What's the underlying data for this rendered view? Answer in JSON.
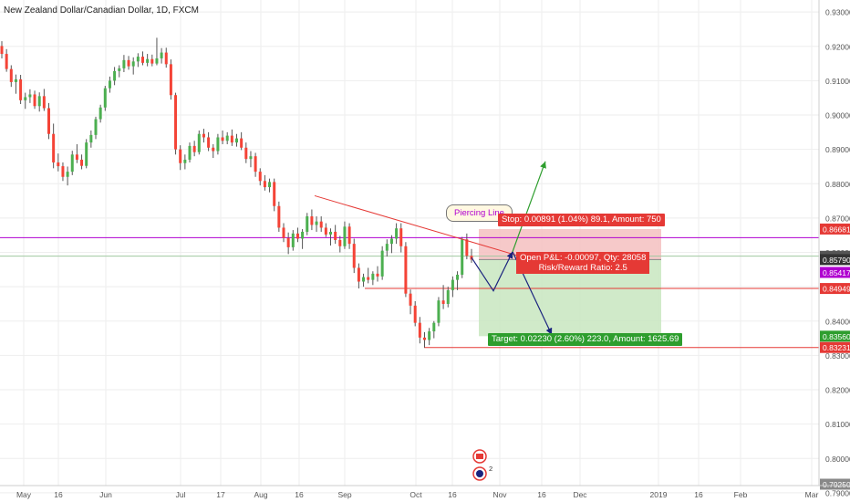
{
  "header": {
    "title": "New Zealand Dollar/Canadian Dollar, 1D, FXCM"
  },
  "colors": {
    "up": "#4caf50",
    "down": "#f44336",
    "wick": "#555555",
    "stop_zone": "#f4c0c0",
    "target_zone": "#c8e6c0",
    "purple_line": "#b000d0",
    "red_line": "#e53935",
    "grid": "#eeeeee"
  },
  "chart_data": {
    "type": "candlestick",
    "symbol": "New Zealand Dollar/Canadian Dollar",
    "interval": "1D",
    "exchange": "FXCM",
    "y_range": [
      0.7921,
      0.9335
    ],
    "y_ticks": [
      "0.93000",
      "0.92000",
      "0.91000",
      "0.90000",
      "0.89000",
      "0.88000",
      "0.87000",
      "0.86000",
      "0.85000",
      "0.84000",
      "0.83000",
      "0.82000",
      "0.81000",
      "0.80000",
      "0.79000"
    ],
    "x_ticks": [
      "May",
      "16",
      "Jun",
      "Jul",
      "17",
      "Aug",
      "16",
      "Sep",
      "Oct",
      "16",
      "Nov",
      "16",
      "Dec",
      "2019",
      "16",
      "Feb",
      "Mar"
    ],
    "price_labels": [
      {
        "value": "0.86681",
        "color": "#e53935"
      },
      {
        "value": "0.85417",
        "color": "#b000d0"
      },
      {
        "value": "0.85887",
        "color": "#555555"
      },
      {
        "value": "0.85790",
        "color": "#333333"
      },
      {
        "value": "0.84949",
        "color": "#e53935"
      },
      {
        "value": "0.83560",
        "color": "#2e9e2e"
      },
      {
        "value": "0.83231",
        "color": "#e53935"
      },
      {
        "value": "0.79250",
        "color": "#888888"
      }
    ],
    "horizontal_levels": {
      "purple": 0.8643,
      "gray": 0.8589,
      "support": 0.8495,
      "low": 0.8323
    },
    "trade": {
      "entry": 0.8579,
      "stop": 0.8668,
      "target": 0.8356,
      "stop_label": "Stop: 0.00891 (1.04%) 89.1, Amount: 750",
      "target_label": "Target: 0.02230 (2.60%) 223.0, Amount: 1625.69",
      "pnl_label": "Open P&L: -0.00097, Qty: 28058",
      "rr_label": "Risk/Reward Ratio: 2.5"
    },
    "pattern_label": "Piercing Line",
    "event_count": "2",
    "candles": [
      [
        0.9201,
        0.9215,
        0.9165,
        0.9178
      ],
      [
        0.9178,
        0.9192,
        0.9126,
        0.9134
      ],
      [
        0.9134,
        0.9145,
        0.9082,
        0.9096
      ],
      [
        0.9096,
        0.9118,
        0.9062,
        0.9104
      ],
      [
        0.9104,
        0.9117,
        0.9032,
        0.9043
      ],
      [
        0.9043,
        0.9065,
        0.9018,
        0.9052
      ],
      [
        0.9052,
        0.9075,
        0.9035,
        0.906
      ],
      [
        0.906,
        0.9071,
        0.9018,
        0.9026
      ],
      [
        0.9026,
        0.9066,
        0.901,
        0.9055
      ],
      [
        0.9055,
        0.9076,
        0.9012,
        0.902
      ],
      [
        0.902,
        0.9035,
        0.893,
        0.8945
      ],
      [
        0.8945,
        0.8975,
        0.8845,
        0.8862
      ],
      [
        0.8862,
        0.8888,
        0.8836,
        0.8851
      ],
      [
        0.8851,
        0.8862,
        0.8808,
        0.882
      ],
      [
        0.882,
        0.885,
        0.8795,
        0.8835
      ],
      [
        0.8835,
        0.8896,
        0.8825,
        0.8885
      ],
      [
        0.8885,
        0.8915,
        0.886,
        0.887
      ],
      [
        0.887,
        0.8885,
        0.8842,
        0.8852
      ],
      [
        0.8852,
        0.893,
        0.8845,
        0.892
      ],
      [
        0.892,
        0.8955,
        0.8905,
        0.8942
      ],
      [
        0.8942,
        0.8995,
        0.893,
        0.8988
      ],
      [
        0.8988,
        0.903,
        0.8978,
        0.9022
      ],
      [
        0.9022,
        0.9085,
        0.9012,
        0.9078
      ],
      [
        0.9078,
        0.9112,
        0.9065,
        0.91
      ],
      [
        0.91,
        0.914,
        0.9087,
        0.9128
      ],
      [
        0.9128,
        0.9145,
        0.911,
        0.9136
      ],
      [
        0.9136,
        0.9175,
        0.9125,
        0.916
      ],
      [
        0.916,
        0.9172,
        0.9132,
        0.9142
      ],
      [
        0.9142,
        0.9168,
        0.9118,
        0.9156
      ],
      [
        0.9156,
        0.918,
        0.914,
        0.917
      ],
      [
        0.917,
        0.9185,
        0.9145,
        0.9152
      ],
      [
        0.9152,
        0.9178,
        0.9142,
        0.9163
      ],
      [
        0.9163,
        0.9176,
        0.9142,
        0.915
      ],
      [
        0.915,
        0.9225,
        0.9145,
        0.9165
      ],
      [
        0.9165,
        0.9195,
        0.915,
        0.9182
      ],
      [
        0.9182,
        0.9196,
        0.9138,
        0.9148
      ],
      [
        0.9148,
        0.9162,
        0.9045,
        0.9058
      ],
      [
        0.9058,
        0.9065,
        0.8885,
        0.89
      ],
      [
        0.89,
        0.8912,
        0.884,
        0.886
      ],
      [
        0.886,
        0.8885,
        0.8842,
        0.887
      ],
      [
        0.887,
        0.892,
        0.8862,
        0.891
      ],
      [
        0.891,
        0.8925,
        0.888,
        0.8892
      ],
      [
        0.8892,
        0.8955,
        0.8885,
        0.8945
      ],
      [
        0.8945,
        0.896,
        0.892,
        0.8935
      ],
      [
        0.8935,
        0.895,
        0.8895,
        0.8905
      ],
      [
        0.8905,
        0.8915,
        0.8875,
        0.8895
      ],
      [
        0.8895,
        0.8945,
        0.8885,
        0.8935
      ],
      [
        0.8935,
        0.8955,
        0.8915,
        0.8925
      ],
      [
        0.8925,
        0.895,
        0.8915,
        0.894
      ],
      [
        0.894,
        0.8958,
        0.891,
        0.892
      ],
      [
        0.892,
        0.8945,
        0.8908,
        0.8932
      ],
      [
        0.8932,
        0.895,
        0.8898,
        0.8905
      ],
      [
        0.8905,
        0.892,
        0.886,
        0.8872
      ],
      [
        0.8872,
        0.8895,
        0.8848,
        0.888
      ],
      [
        0.888,
        0.889,
        0.882,
        0.8835
      ],
      [
        0.8835,
        0.8845,
        0.8795,
        0.8808
      ],
      [
        0.8808,
        0.8825,
        0.878,
        0.879
      ],
      [
        0.879,
        0.8815,
        0.8775,
        0.8805
      ],
      [
        0.8805,
        0.8815,
        0.872,
        0.8735
      ],
      [
        0.8735,
        0.8748,
        0.866,
        0.8672
      ],
      [
        0.8672,
        0.8685,
        0.863,
        0.8642
      ],
      [
        0.8642,
        0.8658,
        0.8595,
        0.8615
      ],
      [
        0.8615,
        0.8665,
        0.8605,
        0.8655
      ],
      [
        0.8655,
        0.8672,
        0.863,
        0.864
      ],
      [
        0.864,
        0.8668,
        0.861,
        0.866
      ],
      [
        0.866,
        0.8715,
        0.865,
        0.8705
      ],
      [
        0.8705,
        0.8725,
        0.8665,
        0.868
      ],
      [
        0.868,
        0.8705,
        0.866,
        0.869
      ],
      [
        0.869,
        0.8705,
        0.866,
        0.8672
      ],
      [
        0.8672,
        0.8685,
        0.8645,
        0.8652
      ],
      [
        0.8652,
        0.867,
        0.862,
        0.866
      ],
      [
        0.866,
        0.868,
        0.8625,
        0.8636
      ],
      [
        0.8636,
        0.8648,
        0.86,
        0.8618
      ],
      [
        0.8618,
        0.869,
        0.861,
        0.8675
      ],
      [
        0.8675,
        0.8685,
        0.861,
        0.8625
      ],
      [
        0.8625,
        0.864,
        0.854,
        0.8555
      ],
      [
        0.8555,
        0.8568,
        0.8495,
        0.8515
      ],
      [
        0.8515,
        0.8538,
        0.85,
        0.8528
      ],
      [
        0.8528,
        0.8555,
        0.851,
        0.852
      ],
      [
        0.852,
        0.8545,
        0.8505,
        0.8538
      ],
      [
        0.8538,
        0.856,
        0.8515,
        0.853
      ],
      [
        0.853,
        0.8618,
        0.852,
        0.8605
      ],
      [
        0.8605,
        0.8638,
        0.8588,
        0.8625
      ],
      [
        0.8625,
        0.865,
        0.8598,
        0.864
      ],
      [
        0.864,
        0.8685,
        0.8625,
        0.867
      ],
      [
        0.867,
        0.8685,
        0.86,
        0.8618
      ],
      [
        0.8618,
        0.863,
        0.847,
        0.848
      ],
      [
        0.848,
        0.8492,
        0.842,
        0.8445
      ],
      [
        0.8445,
        0.8458,
        0.8385,
        0.8395
      ],
      [
        0.8395,
        0.8412,
        0.8335,
        0.8352
      ],
      [
        0.8352,
        0.8368,
        0.8323,
        0.8345
      ],
      [
        0.8345,
        0.838,
        0.833,
        0.837
      ],
      [
        0.837,
        0.84,
        0.835,
        0.8395
      ],
      [
        0.8395,
        0.847,
        0.8385,
        0.846
      ],
      [
        0.846,
        0.8505,
        0.8435,
        0.845
      ],
      [
        0.845,
        0.85,
        0.844,
        0.849
      ],
      [
        0.849,
        0.853,
        0.847,
        0.852
      ],
      [
        0.852,
        0.8545,
        0.849,
        0.8535
      ],
      [
        0.8535,
        0.8645,
        0.8525,
        0.8638
      ],
      [
        0.8638,
        0.8655,
        0.858,
        0.859
      ],
      [
        0.859,
        0.861,
        0.857,
        0.8579
      ]
    ]
  }
}
